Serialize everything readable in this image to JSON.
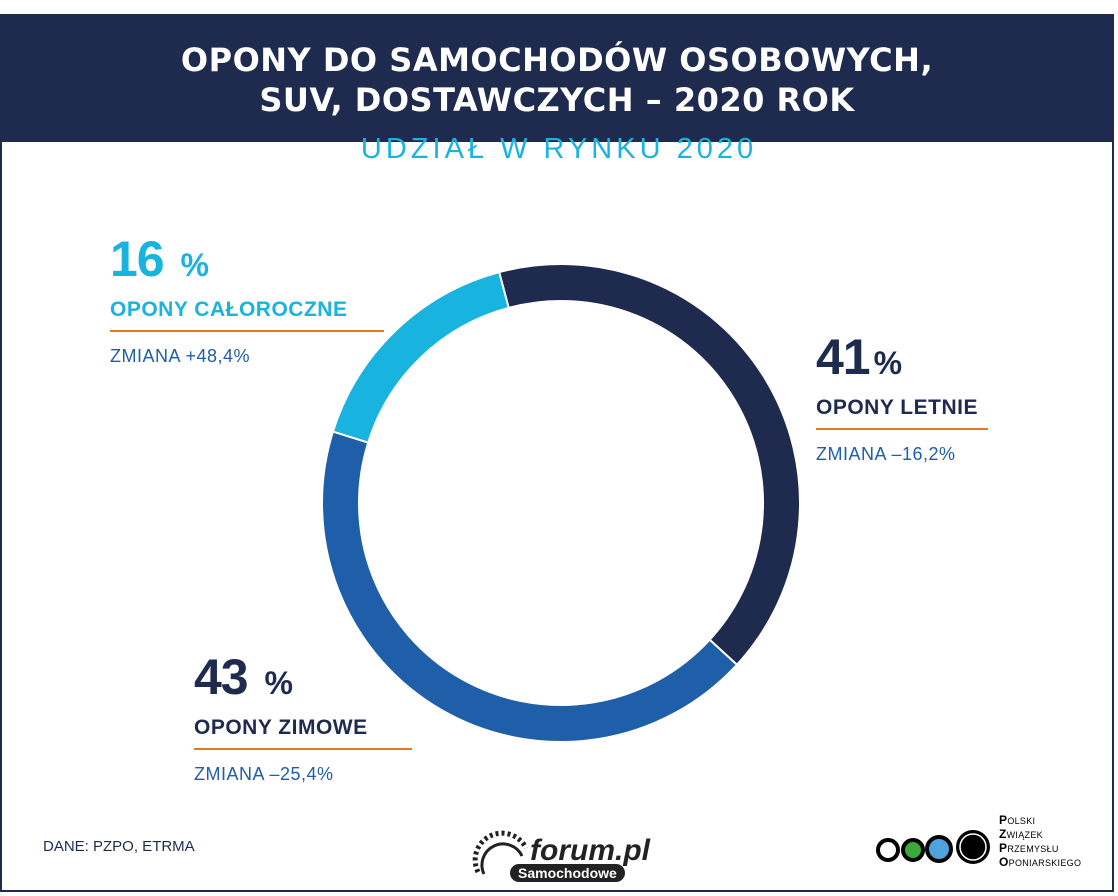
{
  "header": {
    "line1": "OPONY DO SAMOCHODÓW OSOBOWYCH,",
    "line2": "SUV, DOSTAWCZYCH – 2020 ROK"
  },
  "subtitle": "UDZIAŁ W RYNKU 2020",
  "chart_data": {
    "type": "pie",
    "variant": "donut",
    "title": "UDZIAŁ W RYNKU 2020",
    "categories": [
      "OPONY LETNIE",
      "OPONY ZIMOWE",
      "OPONY CAŁOROCZNE"
    ],
    "values": [
      41,
      43,
      16
    ],
    "value_labels": [
      "41",
      "43 ",
      "16 "
    ],
    "unit": "%",
    "changes": [
      "ZMIANA –16,2%",
      "ZMIANA –25,4%",
      "ZMIANA +48,4%"
    ],
    "colors": [
      "#1e2b4e",
      "#1f5ea8",
      "#19b3df"
    ],
    "legend": "none"
  },
  "source": "DANE: PZPO, ETRMA",
  "watermark": {
    "text": "forum.pl",
    "sub": "Samochodowe"
  },
  "logo": {
    "lines": [
      {
        "initial": "P",
        "rest": "OLSKI"
      },
      {
        "initial": "Z",
        "rest": "WIĄZEK"
      },
      {
        "initial": "P",
        "rest": "RZEMYSŁU"
      },
      {
        "initial": "O",
        "rest": "PONIARSKIEGO"
      }
    ],
    "circle_colors": [
      "#ffffff",
      "#3aa935",
      "#4fa3dc",
      "#000000"
    ]
  }
}
